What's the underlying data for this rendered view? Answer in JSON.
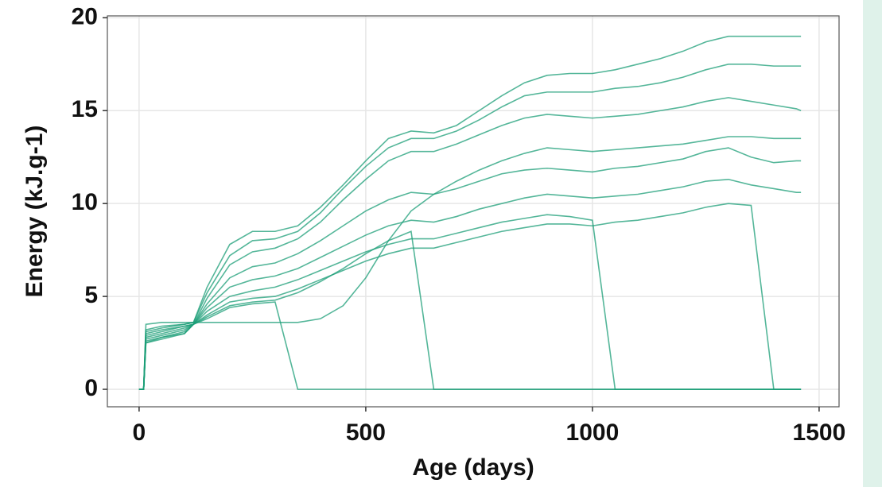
{
  "chart_data": {
    "type": "line",
    "xlabel": "Age (days)",
    "ylabel": "Energy (kJ.g-1)",
    "x": [
      0,
      10,
      15,
      50,
      100,
      120,
      150,
      200,
      250,
      300,
      350,
      400,
      450,
      500,
      550,
      600,
      650,
      700,
      750,
      800,
      850,
      900,
      950,
      1000,
      1050,
      1100,
      1150,
      1200,
      1250,
      1300,
      1350,
      1400,
      1450,
      1460
    ],
    "series": [
      {
        "color": "#1b9e77",
        "values": [
          0,
          0,
          3.2,
          3.4,
          3.5,
          3.6,
          5.5,
          7.8,
          8.5,
          8.5,
          8.8,
          9.8,
          11,
          12.3,
          13.5,
          13.9,
          13.8,
          14.2,
          15,
          15.8,
          16.5,
          16.9,
          17,
          17,
          17.2,
          17.5,
          17.8,
          18.2,
          18.7,
          19,
          19,
          19,
          19,
          19
        ]
      },
      {
        "color": "#1b9e77",
        "values": [
          0,
          0,
          3.1,
          3.3,
          3.5,
          3.6,
          5.2,
          7.2,
          8,
          8.1,
          8.5,
          9.5,
          10.8,
          12,
          13,
          13.5,
          13.5,
          13.9,
          14.5,
          15.2,
          15.8,
          16,
          16,
          16,
          16.2,
          16.3,
          16.5,
          16.8,
          17.2,
          17.5,
          17.5,
          17.4,
          17.4,
          17.4
        ]
      },
      {
        "color": "#1b9e77",
        "values": [
          0,
          0,
          3,
          3.2,
          3.4,
          3.5,
          4.9,
          6.7,
          7.4,
          7.6,
          8.1,
          9,
          10.2,
          11.3,
          12.3,
          12.8,
          12.8,
          13.2,
          13.7,
          14.2,
          14.6,
          14.8,
          14.7,
          14.6,
          14.7,
          14.8,
          15,
          15.2,
          15.5,
          15.7,
          15.5,
          15.3,
          15.1,
          15
        ]
      },
      {
        "color": "#1b9e77",
        "values": [
          0,
          0,
          2.9,
          3.1,
          3.4,
          3.5,
          4.6,
          6,
          6.6,
          6.8,
          7.3,
          8,
          8.8,
          9.6,
          10.2,
          10.6,
          10.5,
          10.8,
          11.2,
          11.6,
          11.8,
          11.9,
          11.8,
          11.7,
          11.9,
          12,
          12.2,
          12.4,
          12.8,
          13,
          12.5,
          12.2,
          12.3,
          12.3
        ]
      },
      {
        "color": "#1b9e77",
        "values": [
          0,
          0,
          2.8,
          3,
          3.3,
          3.5,
          4.4,
          5.5,
          5.9,
          6.1,
          6.5,
          7.1,
          7.7,
          8.3,
          8.8,
          9.1,
          9,
          9.3,
          9.7,
          10,
          10.3,
          10.5,
          10.4,
          10.3,
          10.4,
          10.5,
          10.7,
          10.9,
          11.2,
          11.3,
          11,
          10.8,
          10.6,
          10.6
        ]
      },
      {
        "color": "#1b9e77",
        "values": [
          0,
          0,
          2.7,
          2.9,
          3.2,
          3.5,
          4.2,
          5,
          5.3,
          5.5,
          5.9,
          6.4,
          6.9,
          7.4,
          7.8,
          8.1,
          8.1,
          8.4,
          8.7,
          9,
          9.2,
          9.4,
          9.3,
          9.1,
          0,
          0,
          0,
          0,
          0,
          0,
          0,
          0,
          0,
          0
        ]
      },
      {
        "color": "#1b9e77",
        "values": [
          0,
          0,
          2.6,
          2.8,
          3.1,
          3.5,
          4,
          4.7,
          4.9,
          5,
          5.4,
          5.9,
          6.4,
          6.9,
          7.3,
          7.6,
          7.6,
          7.9,
          8.2,
          8.5,
          8.7,
          8.9,
          8.9,
          8.8,
          9,
          9.1,
          9.3,
          9.5,
          9.8,
          10,
          9.9,
          0,
          0,
          0
        ]
      },
      {
        "color": "#1b9e77",
        "values": [
          0,
          0,
          2.5,
          2.7,
          3,
          3.5,
          3.9,
          4.5,
          4.7,
          4.8,
          5.2,
          5.8,
          6.5,
          7.3,
          8,
          8.5,
          0,
          0,
          0,
          0,
          0,
          0,
          0,
          0,
          0,
          0,
          0,
          0,
          0,
          0,
          0,
          0,
          0,
          0
        ]
      },
      {
        "color": "#1b9e77",
        "values": [
          0,
          0,
          2.5,
          2.8,
          3,
          3.5,
          3.8,
          4.4,
          4.6,
          4.7,
          0,
          0,
          0,
          0,
          0,
          0,
          0,
          0,
          0,
          0,
          0,
          0,
          0,
          0,
          0,
          0,
          0,
          0,
          0,
          0,
          0,
          0,
          0,
          0
        ]
      },
      {
        "color": "#1b9e77",
        "values": [
          0,
          0,
          3.5,
          3.6,
          3.6,
          3.6,
          3.6,
          3.6,
          3.6,
          3.6,
          3.6,
          3.8,
          4.5,
          6,
          8,
          9.6,
          10.5,
          11.2,
          11.8,
          12.3,
          12.7,
          13,
          12.9,
          12.8,
          12.9,
          13,
          13.1,
          13.2,
          13.4,
          13.6,
          13.6,
          13.5,
          13.5,
          13.5
        ]
      }
    ],
    "xlim": [
      -70,
      1544
    ],
    "ylim": [
      -0.94,
      20.1
    ],
    "xticks": [
      0,
      500,
      1000,
      1500
    ],
    "yticks": [
      0,
      5,
      10,
      15,
      20
    ],
    "grid": true
  }
}
